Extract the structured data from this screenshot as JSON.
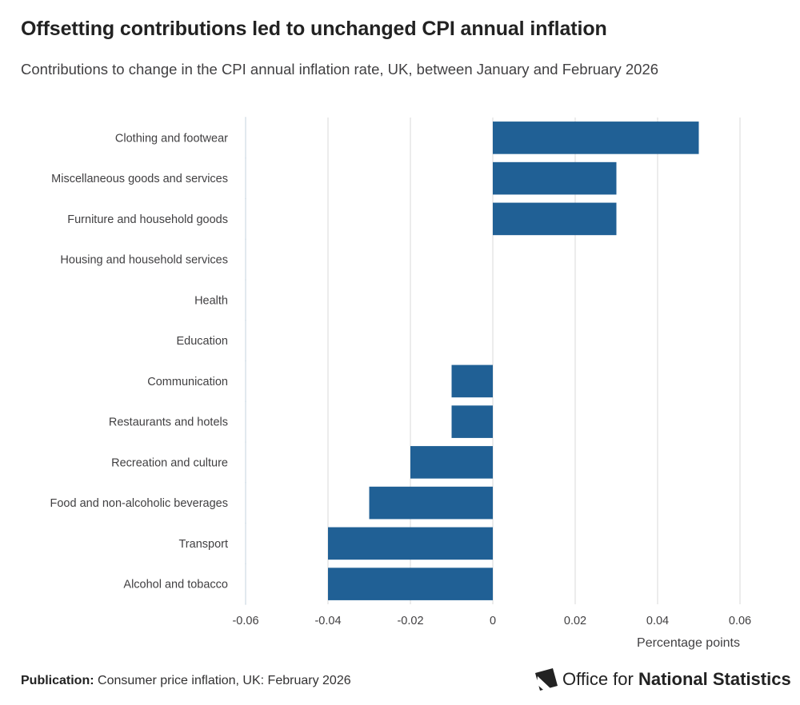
{
  "header": {
    "title": "Offsetting contributions led to unchanged CPI annual inflation",
    "subtitle": "Contributions to change in the CPI annual inflation rate, UK, between January and February 2026"
  },
  "footer": {
    "publication_label": "Publication:",
    "publication_text": "Consumer price inflation, UK: February 2026",
    "logo_text_regular": "Office for",
    "logo_text_bold": "National Statistics",
    "logo_icon": "ons-logo-icon"
  },
  "chart_data": {
    "type": "bar",
    "orientation": "horizontal",
    "categories": [
      "Clothing and footwear",
      "Miscellaneous goods and services",
      "Furniture and household goods",
      "Housing and household services",
      "Health",
      "Education",
      "Communication",
      "Restaurants and hotels",
      "Recreation and culture",
      "Food and non-alcoholic beverages",
      "Transport",
      "Alcohol and tobacco"
    ],
    "values": [
      0.05,
      0.03,
      0.03,
      0,
      0,
      0,
      -0.01,
      -0.01,
      -0.02,
      -0.03,
      -0.04,
      -0.04
    ],
    "xlim": [
      -0.06,
      0.06
    ],
    "xticks": [
      -0.06,
      -0.04,
      -0.02,
      0,
      0.02,
      0.04,
      0.06
    ],
    "xtick_labels": [
      "-0.06",
      "-0.04",
      "-0.02",
      "0",
      "0.02",
      "0.04",
      "0.06"
    ],
    "xlabel": "Percentage points",
    "ylabel": "",
    "grid": "vertical",
    "legend": "none",
    "bar_color": "#206095",
    "grid_color": "#d9d9d9",
    "axis_color": "#d9e2ea",
    "label_color": "#414042"
  }
}
